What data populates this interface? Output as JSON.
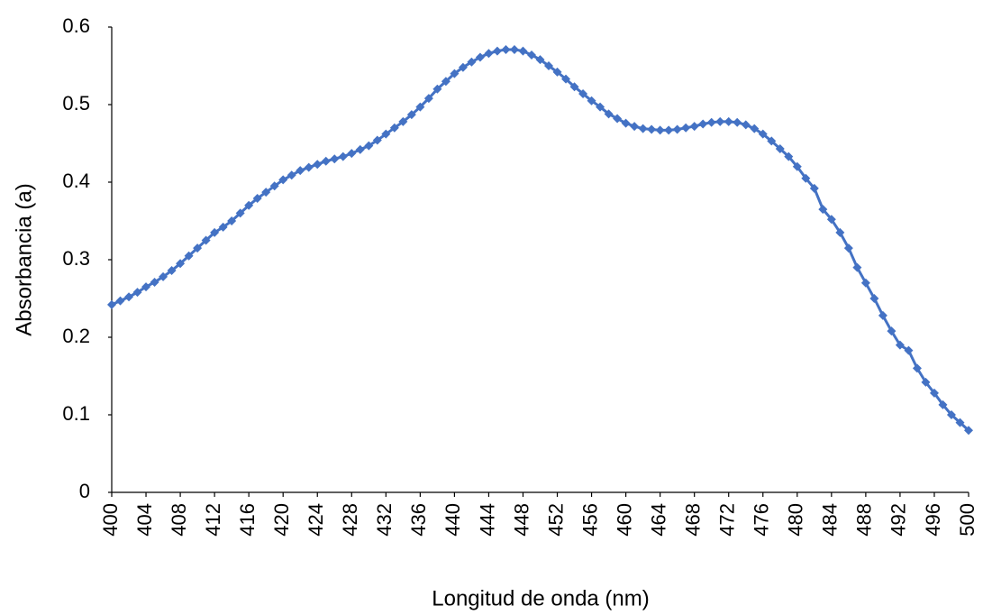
{
  "chart_data": {
    "type": "line",
    "xlabel": "Longitud de onda (nm)",
    "ylabel": "Absorbancia (a)",
    "x": [
      400,
      401,
      402,
      403,
      404,
      405,
      406,
      407,
      408,
      409,
      410,
      411,
      412,
      413,
      414,
      415,
      416,
      417,
      418,
      419,
      420,
      421,
      422,
      423,
      424,
      425,
      426,
      427,
      428,
      429,
      430,
      431,
      432,
      433,
      434,
      435,
      436,
      437,
      438,
      439,
      440,
      441,
      442,
      443,
      444,
      445,
      446,
      447,
      448,
      449,
      450,
      451,
      452,
      453,
      454,
      455,
      456,
      457,
      458,
      459,
      460,
      461,
      462,
      463,
      464,
      465,
      466,
      467,
      468,
      469,
      470,
      471,
      472,
      473,
      474,
      475,
      476,
      477,
      478,
      479,
      480,
      481,
      482,
      483,
      484,
      485,
      486,
      487,
      488,
      489,
      490,
      491,
      492,
      493,
      494,
      495,
      496,
      497,
      498,
      499,
      500
    ],
    "values": [
      0.242,
      0.247,
      0.252,
      0.258,
      0.265,
      0.271,
      0.278,
      0.286,
      0.295,
      0.305,
      0.315,
      0.325,
      0.335,
      0.342,
      0.35,
      0.36,
      0.37,
      0.379,
      0.387,
      0.395,
      0.403,
      0.409,
      0.415,
      0.419,
      0.423,
      0.427,
      0.43,
      0.433,
      0.437,
      0.442,
      0.447,
      0.454,
      0.462,
      0.47,
      0.478,
      0.487,
      0.497,
      0.508,
      0.52,
      0.53,
      0.54,
      0.548,
      0.555,
      0.561,
      0.566,
      0.569,
      0.571,
      0.571,
      0.569,
      0.564,
      0.558,
      0.55,
      0.542,
      0.533,
      0.523,
      0.514,
      0.505,
      0.497,
      0.488,
      0.482,
      0.476,
      0.472,
      0.469,
      0.468,
      0.467,
      0.467,
      0.468,
      0.47,
      0.472,
      0.475,
      0.477,
      0.478,
      0.478,
      0.477,
      0.474,
      0.469,
      0.462,
      0.453,
      0.443,
      0.433,
      0.42,
      0.405,
      0.392,
      0.365,
      0.352,
      0.335,
      0.315,
      0.29,
      0.27,
      0.25,
      0.228,
      0.208,
      0.19,
      0.183,
      0.16,
      0.142,
      0.128,
      0.113,
      0.1,
      0.09,
      0.08
    ],
    "color": "#4472c4",
    "xlim": [
      400,
      500
    ],
    "xticks": [
      400,
      404,
      408,
      412,
      416,
      420,
      424,
      428,
      432,
      436,
      440,
      444,
      448,
      452,
      456,
      460,
      464,
      468,
      472,
      476,
      480,
      484,
      488,
      492,
      496,
      500
    ],
    "ylim": [
      0,
      0.6
    ],
    "yticks": [
      0,
      0.1,
      0.2,
      0.3,
      0.4,
      0.5,
      0.6
    ],
    "grid": false
  }
}
